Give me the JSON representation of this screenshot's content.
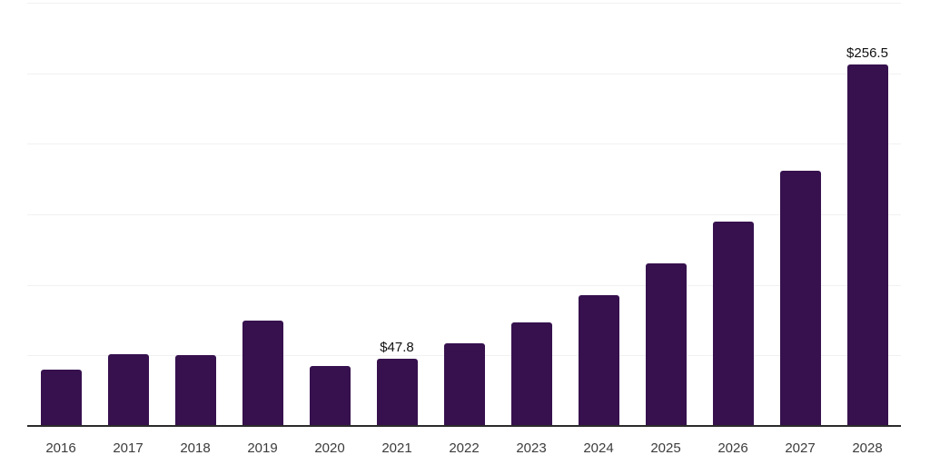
{
  "chart_data": {
    "type": "bar",
    "title": "",
    "xlabel": "",
    "ylabel": "",
    "categories": [
      "2016",
      "2017",
      "2018",
      "2019",
      "2020",
      "2021",
      "2022",
      "2023",
      "2024",
      "2025",
      "2026",
      "2027",
      "2028"
    ],
    "values": [
      40,
      51,
      50,
      75,
      42.5,
      47.8,
      58.5,
      73.5,
      92.5,
      115.5,
      145,
      181,
      256.5
    ],
    "labeled_points": [
      {
        "category": "2021",
        "label": "$47.8"
      },
      {
        "category": "2028",
        "label": "$256.5"
      }
    ],
    "ylim": [
      0,
      300
    ],
    "gridline_step": 50,
    "grid": "horizontal",
    "legend": "none",
    "y_axis_tick_labels_visible": false,
    "colors": {
      "bar": "#36114E",
      "gridline": "#f1f1f1",
      "axis_line": "#2b2b2b",
      "tick_label": "#3c3c3c",
      "data_label": "#111111",
      "background": "#ffffff"
    }
  }
}
